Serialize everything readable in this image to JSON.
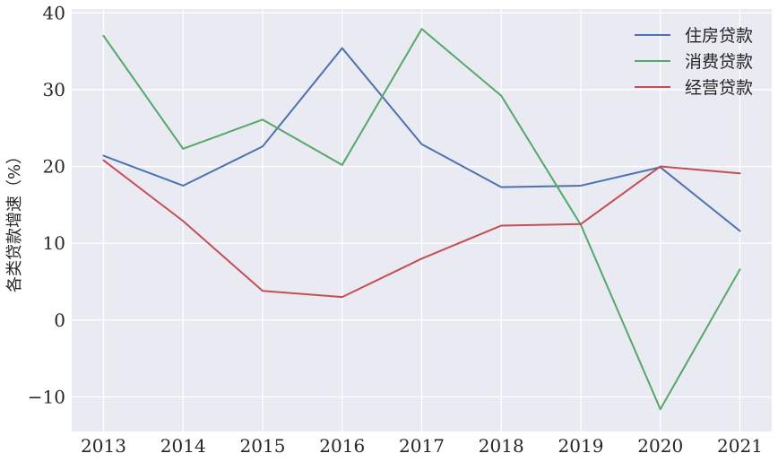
{
  "chart_data": {
    "type": "line",
    "x": [
      2013,
      2014,
      2015,
      2016,
      2017,
      2018,
      2019,
      2020,
      2021
    ],
    "series": [
      {
        "name": "住房贷款",
        "color": "#4c72b0",
        "values": [
          21.4,
          17.5,
          22.6,
          35.4,
          22.9,
          17.3,
          17.5,
          19.9,
          11.6
        ]
      },
      {
        "name": "消费贷款",
        "color": "#55a868",
        "values": [
          37.0,
          22.3,
          26.1,
          20.2,
          37.9,
          29.2,
          12.4,
          -11.6,
          6.6
        ]
      },
      {
        "name": "经营贷款",
        "color": "#c44e52",
        "values": [
          20.8,
          12.9,
          3.8,
          3.0,
          8.0,
          12.3,
          12.5,
          20.0,
          19.1
        ]
      }
    ],
    "ylabel": "各类贷款增速（%）",
    "xlabel": "",
    "title": "",
    "ylim": [
      -14.5,
      40.5
    ],
    "xlim": [
      2012.6,
      2021.4
    ],
    "yticks": [
      -10,
      0,
      10,
      20,
      30,
      40
    ],
    "yticks_labels": [
      "−10",
      "0",
      "10",
      "20",
      "30",
      "40"
    ],
    "xticks": [
      2013,
      2014,
      2015,
      2016,
      2017,
      2018,
      2019,
      2020,
      2021
    ],
    "grid": true,
    "legend_position": "top-right",
    "background_color": "#eaeaf2",
    "grid_color": "#ffffff"
  }
}
